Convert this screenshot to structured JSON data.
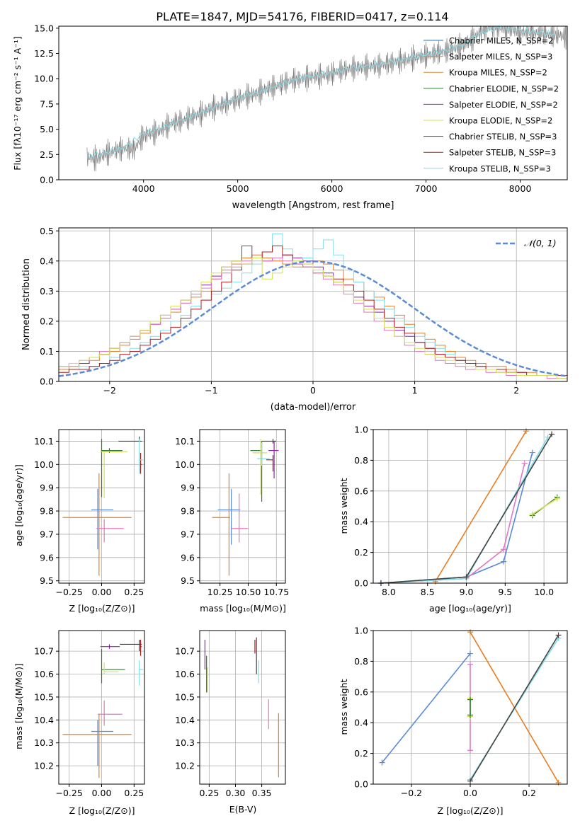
{
  "figure": {
    "title": "PLATE=1847, MJD=54176, FIBERID=0417, z=0.114"
  },
  "chart_data": [
    {
      "id": "spectrum",
      "type": "line",
      "xlabel": "wavelength [Angstrom, rest frame]",
      "ylabel": "Flux [fλ10⁻¹⁷ erg cm⁻² s⁻¹ A⁻¹]",
      "xlim": [
        3100,
        8500
      ],
      "ylim": [
        0,
        15.2
      ],
      "xticks": [
        4000,
        5000,
        6000,
        7000,
        8000
      ],
      "yticks": [
        0.0,
        2.5,
        5.0,
        7.5,
        10.0,
        12.5,
        15.0
      ],
      "ytick_labels": [
        "0.0",
        "2.5",
        "5.0",
        "7.5",
        "10.0",
        "12.5",
        "15.0"
      ],
      "grid": false,
      "legend": "upper-right",
      "legend_entries": [
        {
          "label": "Chabrier MILES, N_SSP=2",
          "color": "#1f77b4"
        },
        {
          "label": "Salpeter MILES, N_SSP=3",
          "color": "#ff7f0e"
        },
        {
          "label": "Kroupa MILES, N_SSP=2",
          "color": "#d08a2e"
        },
        {
          "label": "Chabrier ELODIE, N_SSP=2",
          "color": "#2e7d32"
        },
        {
          "label": "Salpeter ELODIE, N_SSP=2",
          "color": "#9c27b0"
        },
        {
          "label": "Kroupa ELODIE, N_SSP=2",
          "color": "#d4e157"
        },
        {
          "label": "Chabrier STELIB, N_SSP=3",
          "color": "#444444"
        },
        {
          "label": "Salpeter STELIB, N_SSP=3",
          "color": "#b71c1c"
        },
        {
          "label": "Kroupa STELIB, N_SSP=3",
          "color": "#80deea"
        }
      ],
      "series": [
        {
          "name": "data",
          "color": "#808080",
          "x": [
            3400,
            3500,
            3600,
            3700,
            3800,
            3900,
            4000,
            4100,
            4200,
            4300,
            4400,
            4500,
            4600,
            4700,
            4800,
            4900,
            5000,
            5100,
            5200,
            5300,
            5400,
            5500,
            5600,
            5700,
            5800,
            5900,
            6000,
            6100,
            6200,
            6300,
            6400,
            6500,
            6600,
            6700,
            6800,
            6900,
            7000,
            7100,
            7200,
            7300,
            7400,
            7500,
            7600,
            7700,
            7800,
            7900,
            8000,
            8100,
            8200,
            8300,
            8400,
            8500
          ],
          "y": [
            2.2,
            2.1,
            2.6,
            2.9,
            3.1,
            3.0,
            4.4,
            4.6,
            5.0,
            5.6,
            5.8,
            6.2,
            6.5,
            7.0,
            7.3,
            7.6,
            8.0,
            8.3,
            8.5,
            9.0,
            9.2,
            9.6,
            9.9,
            10.0,
            10.2,
            10.3,
            10.5,
            10.8,
            11.0,
            11.1,
            11.2,
            11.3,
            11.5,
            11.7,
            11.9,
            12.1,
            12.3,
            12.5,
            12.7,
            13.0,
            13.3,
            14.0,
            14.8,
            15.2,
            15.0,
            14.9,
            14.6,
            14.6,
            14.5,
            14.4,
            14.3,
            14.2
          ]
        },
        {
          "name": "model",
          "color": "#80deea",
          "x": [
            3400,
            3600,
            3800,
            4000,
            4200,
            4400,
            4600,
            4800,
            5000,
            5200,
            5400,
            5600,
            5800,
            6000,
            6200,
            6400,
            6600,
            6800,
            7000,
            7200,
            7400,
            7600,
            7800,
            8000,
            8200,
            8400
          ],
          "y": [
            2.3,
            2.7,
            3.2,
            4.6,
            5.2,
            5.9,
            6.6,
            7.4,
            8.1,
            8.6,
            9.3,
            9.9,
            10.3,
            10.6,
            11.1,
            11.3,
            11.6,
            12.0,
            12.4,
            12.8,
            13.4,
            14.6,
            15.2,
            14.8,
            14.6,
            14.4
          ]
        }
      ]
    },
    {
      "id": "residuals",
      "type": "line",
      "xlabel": "(data-model)/error",
      "ylabel": "Normed distribution",
      "xlim": [
        -2.5,
        2.5
      ],
      "ylim": [
        0,
        0.51
      ],
      "xticks": [
        -2,
        -1,
        0,
        1,
        2
      ],
      "xtick_labels": [
        "−2",
        "−1",
        "0",
        "1",
        "2"
      ],
      "yticks": [
        0.0,
        0.1,
        0.2,
        0.3,
        0.4,
        0.5
      ],
      "ytick_labels": [
        "0.0",
        "0.1",
        "0.2",
        "0.3",
        "0.4",
        "0.5"
      ],
      "grid": true,
      "legend": "upper-right",
      "legend_label": "𝒩(0, 1)",
      "normal_color": "#5b8bd8",
      "histogram_bin_width": 0.1,
      "histograms": [
        {
          "color": "#e87f24",
          "v": [
            0.04,
            0.05,
            0.06,
            0.07,
            0.09,
            0.1,
            0.12,
            0.14,
            0.16,
            0.19,
            0.21,
            0.23,
            0.26,
            0.28,
            0.3,
            0.34,
            0.37,
            0.39,
            0.41,
            0.42,
            0.41,
            0.4,
            0.39,
            0.38,
            0.39,
            0.4,
            0.39,
            0.37,
            0.34,
            0.33,
            0.3,
            0.28,
            0.25,
            0.22,
            0.19,
            0.16,
            0.14,
            0.12,
            0.1,
            0.08,
            0.07,
            0.06,
            0.05,
            0.05,
            0.04,
            0.03,
            0.03,
            0.02,
            0.02,
            0.02
          ]
        },
        {
          "color": "#8e24aa",
          "v": [
            0.05,
            0.06,
            0.06,
            0.08,
            0.09,
            0.11,
            0.13,
            0.15,
            0.17,
            0.19,
            0.22,
            0.24,
            0.27,
            0.3,
            0.32,
            0.35,
            0.38,
            0.4,
            0.45,
            0.41,
            0.4,
            0.41,
            0.42,
            0.41,
            0.4,
            0.38,
            0.36,
            0.33,
            0.3,
            0.28,
            0.25,
            0.23,
            0.2,
            0.17,
            0.15,
            0.13,
            0.11,
            0.09,
            0.08,
            0.07,
            0.06,
            0.05,
            0.04,
            0.04,
            0.03,
            0.03,
            0.02,
            0.02,
            0.02,
            0.02
          ]
        },
        {
          "color": "#80deea",
          "v": [
            0.03,
            0.04,
            0.05,
            0.05,
            0.06,
            0.08,
            0.09,
            0.11,
            0.13,
            0.15,
            0.17,
            0.2,
            0.22,
            0.25,
            0.27,
            0.29,
            0.31,
            0.33,
            0.36,
            0.39,
            0.43,
            0.49,
            0.44,
            0.4,
            0.41,
            0.44,
            0.47,
            0.42,
            0.37,
            0.33,
            0.3,
            0.27,
            0.24,
            0.21,
            0.18,
            0.15,
            0.13,
            0.11,
            0.09,
            0.07,
            0.06,
            0.05,
            0.04,
            0.03,
            0.03,
            0.03,
            0.02,
            0.02,
            0.02,
            0.02
          ]
        },
        {
          "color": "#b71c1c",
          "v": [
            0.03,
            0.04,
            0.04,
            0.05,
            0.06,
            0.07,
            0.09,
            0.1,
            0.12,
            0.14,
            0.16,
            0.18,
            0.21,
            0.24,
            0.27,
            0.3,
            0.33,
            0.37,
            0.39,
            0.41,
            0.43,
            0.45,
            0.42,
            0.39,
            0.38,
            0.36,
            0.35,
            0.34,
            0.32,
            0.3,
            0.27,
            0.24,
            0.21,
            0.18,
            0.16,
            0.13,
            0.11,
            0.09,
            0.08,
            0.07,
            0.06,
            0.05,
            0.04,
            0.04,
            0.03,
            0.03,
            0.02,
            0.02,
            0.02,
            0.02
          ]
        },
        {
          "color": "#e377c2",
          "v": [
            0.05,
            0.06,
            0.07,
            0.08,
            0.1,
            0.11,
            0.13,
            0.15,
            0.17,
            0.19,
            0.21,
            0.24,
            0.26,
            0.29,
            0.31,
            0.34,
            0.36,
            0.38,
            0.4,
            0.41,
            0.4,
            0.41,
            0.4,
            0.39,
            0.38,
            0.36,
            0.34,
            0.32,
            0.29,
            0.26,
            0.23,
            0.2,
            0.17,
            0.15,
            0.12,
            0.1,
            0.09,
            0.07,
            0.06,
            0.05,
            0.04,
            0.04,
            0.03,
            0.03,
            0.02,
            0.02,
            0.02,
            0.02,
            0.01,
            0.01
          ]
        },
        {
          "color": "#d4e157",
          "v": [
            0.05,
            0.06,
            0.07,
            0.08,
            0.09,
            0.11,
            0.13,
            0.15,
            0.17,
            0.2,
            0.22,
            0.25,
            0.27,
            0.3,
            0.33,
            0.36,
            0.38,
            0.4,
            0.39,
            0.41,
            0.34,
            0.36,
            0.38,
            0.4,
            0.39,
            0.37,
            0.35,
            0.33,
            0.3,
            0.27,
            0.24,
            0.21,
            0.18,
            0.15,
            0.13,
            0.11,
            0.09,
            0.08,
            0.07,
            0.06,
            0.05,
            0.04,
            0.04,
            0.03,
            0.03,
            0.02,
            0.02,
            0.02,
            0.02,
            0.01
          ]
        }
      ]
    },
    {
      "id": "age-vs-Z",
      "type": "scatter",
      "xlabel": "Z [log₁₀(Z/Z⊙)]",
      "ylabel": "age  [log₁₀(age/yr)]",
      "xlim": [
        -0.33,
        0.33
      ],
      "ylim": [
        9.49,
        10.15
      ],
      "xticks": [
        -0.25,
        0.0,
        0.25
      ],
      "xtick_labels": [
        "−0.25",
        "0.00",
        "0.25"
      ],
      "yticks": [
        9.5,
        9.6,
        9.7,
        9.8,
        9.9,
        10.0,
        10.1
      ],
      "ytick_labels": [
        "9.5",
        "9.6",
        "9.7",
        "9.8",
        "9.9",
        "10.0",
        "10.1"
      ],
      "grid": true
    },
    {
      "id": "age-vs-mass",
      "type": "scatter",
      "xlabel": "mass [log₁₀(M/M⊙)]",
      "xlim": [
        10.07,
        10.83
      ],
      "ylim": [
        9.49,
        10.15
      ],
      "xticks": [
        10.25,
        10.5,
        10.75
      ],
      "xtick_labels": [
        "10.25",
        "10.50",
        "10.75"
      ],
      "yticks": [
        9.5,
        9.6,
        9.7,
        9.8,
        9.9,
        10.0,
        10.1
      ],
      "ytick_labels": [
        "9.5",
        "9.6",
        "9.7",
        "9.8",
        "9.9",
        "10.0",
        "10.1"
      ],
      "grid": true
    },
    {
      "id": "mass-weight-vs-age",
      "type": "line",
      "xlabel": "age  [log₁₀(age/yr)]",
      "ylabel": "mass weight",
      "xlim": [
        7.8,
        10.3
      ],
      "ylim": [
        0,
        1.0
      ],
      "xticks": [
        8.0,
        8.5,
        9.0,
        9.5,
        10.0
      ],
      "xtick_labels": [
        "8.0",
        "8.5",
        "9.0",
        "9.5",
        "10.0"
      ],
      "yticks": [
        0.0,
        0.2,
        0.4,
        0.6,
        0.8,
        1.0
      ],
      "ytick_labels": [
        "0.0",
        "0.2",
        "0.4",
        "0.6",
        "0.8",
        "1.0"
      ],
      "grid": true
    },
    {
      "id": "mass-vs-Z",
      "type": "scatter",
      "xlabel": "Z [log₁₀(Z/Z⊙)]",
      "ylabel": "mass [log₁₀(M/M⊙)]",
      "xlim": [
        -0.33,
        0.33
      ],
      "ylim": [
        10.12,
        10.79
      ],
      "xticks": [
        -0.25,
        0.0,
        0.25
      ],
      "xtick_labels": [
        "−0.25",
        "0.00",
        "0.25"
      ],
      "yticks": [
        10.2,
        10.3,
        10.4,
        10.5,
        10.6,
        10.7
      ],
      "ytick_labels": [
        "10.2",
        "10.3",
        "10.4",
        "10.5",
        "10.6",
        "10.7"
      ],
      "grid": true
    },
    {
      "id": "mass-vs-EBV",
      "type": "scatter",
      "xlabel": "E(B-V)",
      "xlim": [
        0.232,
        0.395
      ],
      "ylim": [
        10.12,
        10.79
      ],
      "xticks": [
        0.25,
        0.3,
        0.35
      ],
      "xtick_labels": [
        "0.25",
        "0.30",
        "0.35"
      ],
      "yticks": [
        10.2,
        10.3,
        10.4,
        10.5,
        10.6,
        10.7
      ],
      "ytick_labels": [
        "10.2",
        "10.3",
        "10.4",
        "10.5",
        "10.6",
        "10.7"
      ],
      "grid": true
    },
    {
      "id": "mass-weight-vs-Z",
      "type": "line",
      "xlabel": "Z [log₁₀(Z/Z⊙)]",
      "ylabel": "mass weight",
      "xlim": [
        -0.33,
        0.33
      ],
      "ylim": [
        0,
        1.0
      ],
      "xticks": [
        -0.2,
        0.0,
        0.2
      ],
      "xtick_labels": [
        "−0.2",
        "0.0",
        "0.2"
      ],
      "yticks": [
        0.0,
        0.2,
        0.4,
        0.6,
        0.8,
        1.0
      ],
      "ytick_labels": [
        "0.0",
        "0.2",
        "0.4",
        "0.6",
        "0.8",
        "1.0"
      ],
      "grid": true
    }
  ]
}
